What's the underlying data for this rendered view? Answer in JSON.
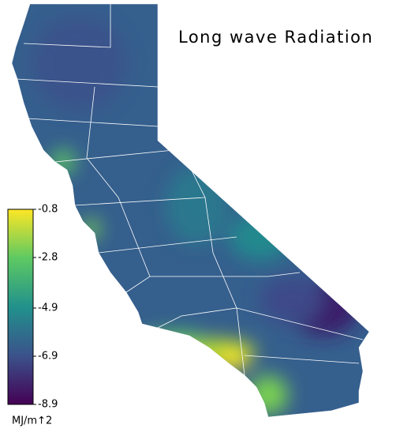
{
  "title": "Long wave Radiation",
  "colorbar": {
    "lim": [
      -8.9,
      -0.8
    ],
    "ticks": [
      -0.8,
      -2.8,
      -4.9,
      -6.9,
      -8.9
    ],
    "label": "MJ/m↑2",
    "colors": [
      "#440154",
      "#3b528b",
      "#21918c",
      "#5ec962",
      "#fde725"
    ]
  }
}
